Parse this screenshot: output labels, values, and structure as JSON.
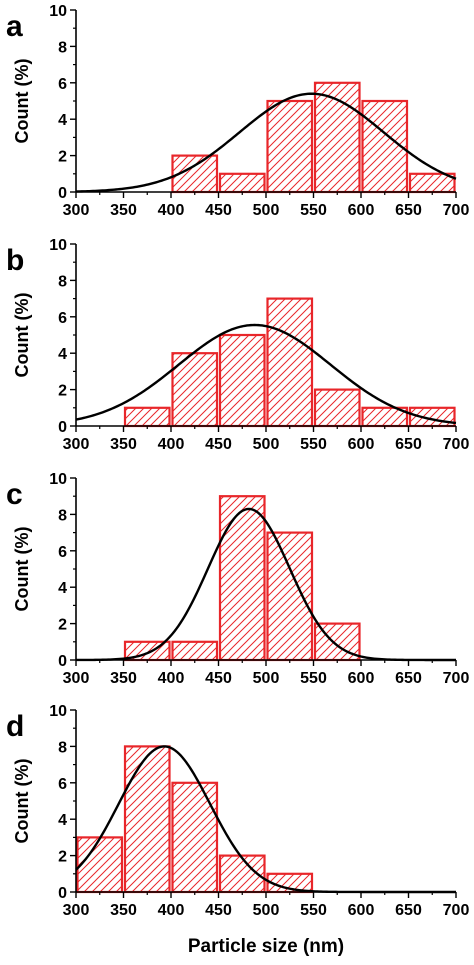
{
  "figure": {
    "xlabel": "Particle size (nm)",
    "bar_color": "#e8262a",
    "curve_color": "#000000"
  },
  "chart_data": [
    {
      "type": "bar",
      "panel_label": "a",
      "ylabel": "Count (%)",
      "xlim": [
        300,
        700
      ],
      "ylim": [
        0,
        10
      ],
      "xticks": [
        300,
        350,
        400,
        450,
        500,
        550,
        600,
        650,
        700
      ],
      "yticks": [
        0,
        2,
        4,
        6,
        8,
        10
      ],
      "bins": [
        {
          "start": 400,
          "end": 450,
          "value": 2
        },
        {
          "start": 450,
          "end": 500,
          "value": 1
        },
        {
          "start": 500,
          "end": 550,
          "value": 5
        },
        {
          "start": 550,
          "end": 600,
          "value": 6
        },
        {
          "start": 600,
          "end": 650,
          "value": 5
        },
        {
          "start": 650,
          "end": 700,
          "value": 1
        }
      ],
      "fit": {
        "kind": "gaussian",
        "mean": 548,
        "sd": 76,
        "peak": 5.4
      }
    },
    {
      "type": "bar",
      "panel_label": "b",
      "ylabel": "Count (%)",
      "xlim": [
        300,
        700
      ],
      "ylim": [
        0,
        10
      ],
      "xticks": [
        300,
        350,
        400,
        450,
        500,
        550,
        600,
        650,
        700
      ],
      "yticks": [
        0,
        2,
        4,
        6,
        8,
        10
      ],
      "bins": [
        {
          "start": 350,
          "end": 400,
          "value": 1
        },
        {
          "start": 400,
          "end": 450,
          "value": 4
        },
        {
          "start": 450,
          "end": 500,
          "value": 5
        },
        {
          "start": 500,
          "end": 550,
          "value": 7
        },
        {
          "start": 550,
          "end": 600,
          "value": 2
        },
        {
          "start": 600,
          "end": 650,
          "value": 1
        },
        {
          "start": 650,
          "end": 700,
          "value": 1
        }
      ],
      "fit": {
        "kind": "gaussian",
        "mean": 488,
        "sd": 80,
        "peak": 5.55
      }
    },
    {
      "type": "bar",
      "panel_label": "c",
      "ylabel": "Count (%)",
      "xlim": [
        300,
        700
      ],
      "ylim": [
        0,
        10
      ],
      "xticks": [
        300,
        350,
        400,
        450,
        500,
        550,
        600,
        650,
        700
      ],
      "yticks": [
        0,
        2,
        4,
        6,
        8,
        10
      ],
      "bins": [
        {
          "start": 350,
          "end": 400,
          "value": 1
        },
        {
          "start": 400,
          "end": 450,
          "value": 1
        },
        {
          "start": 450,
          "end": 500,
          "value": 9
        },
        {
          "start": 500,
          "end": 550,
          "value": 7
        },
        {
          "start": 550,
          "end": 600,
          "value": 2
        }
      ],
      "fit": {
        "kind": "gaussian",
        "mean": 482,
        "sd": 43,
        "peak": 8.3
      }
    },
    {
      "type": "bar",
      "panel_label": "d",
      "ylabel": "Count (%)",
      "xlim": [
        300,
        700
      ],
      "ylim": [
        0,
        10
      ],
      "xticks": [
        300,
        350,
        400,
        450,
        500,
        550,
        600,
        650,
        700
      ],
      "yticks": [
        0,
        2,
        4,
        6,
        8,
        10
      ],
      "bins": [
        {
          "start": 300,
          "end": 350,
          "value": 3
        },
        {
          "start": 350,
          "end": 400,
          "value": 8
        },
        {
          "start": 400,
          "end": 450,
          "value": 6
        },
        {
          "start": 450,
          "end": 500,
          "value": 2
        },
        {
          "start": 500,
          "end": 550,
          "value": 1
        }
      ],
      "fit": {
        "kind": "gaussian",
        "mean": 393,
        "sd": 48,
        "peak": 8.0
      }
    }
  ]
}
